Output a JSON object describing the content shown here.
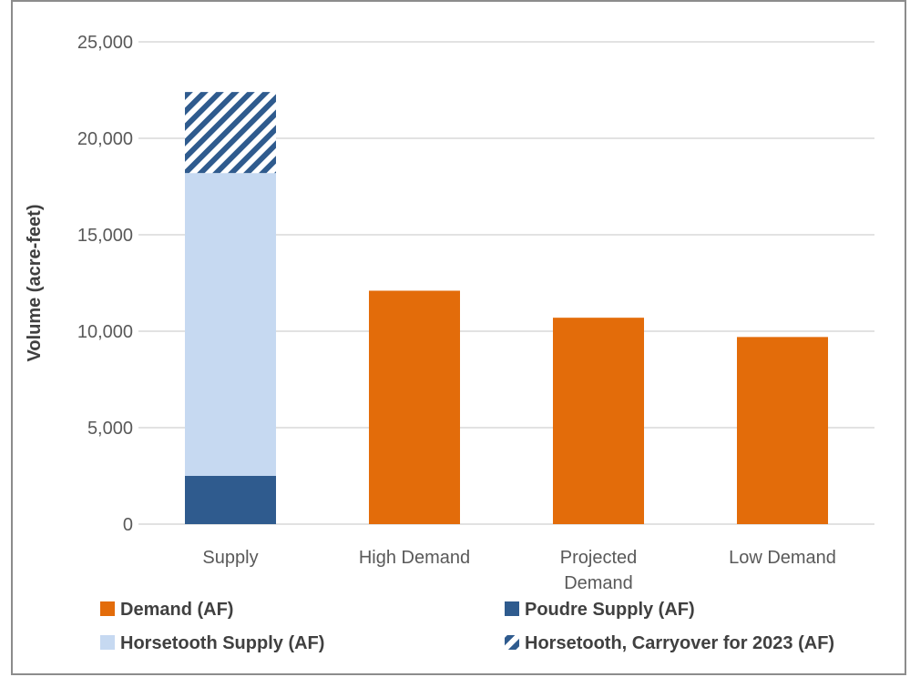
{
  "chart_data": {
    "type": "bar",
    "stacked": true,
    "categories": [
      "Supply",
      "High Demand",
      "Projected\nDemand",
      "Low Demand"
    ],
    "ylabel": "Volume (acre-feet)",
    "xlabel": "",
    "ylim": [
      0,
      25000
    ],
    "yticks": [
      0,
      5000,
      10000,
      15000,
      20000,
      25000
    ],
    "ytick_labels": [
      "0",
      "5,000",
      "10,000",
      "15,000",
      "20,000",
      "25,000"
    ],
    "grid": true,
    "legend_position": "bottom",
    "series": [
      {
        "name": "Demand (AF)",
        "color": "#E36C0A",
        "pattern": "solid",
        "values": [
          0,
          12100,
          10700,
          9700
        ]
      },
      {
        "name": "Poudre Supply (AF)",
        "color": "#2F5B8E",
        "pattern": "solid",
        "values": [
          2500,
          0,
          0,
          0
        ]
      },
      {
        "name": "Horsetooth Supply (AF)",
        "color": "#C6D9F1",
        "pattern": "solid",
        "values": [
          15700,
          0,
          0,
          0
        ]
      },
      {
        "name": "Horsetooth, Carryover for 2023 (AF)",
        "color": "#2F5B8E",
        "pattern": "diagonal-stripes",
        "values": [
          4200,
          0,
          0,
          0
        ]
      }
    ]
  }
}
